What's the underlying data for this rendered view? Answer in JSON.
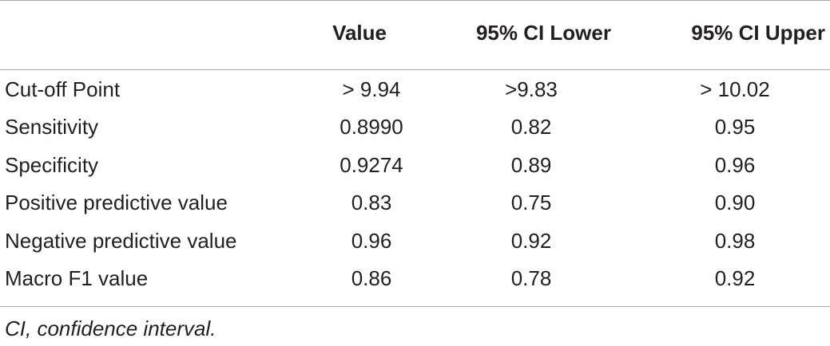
{
  "table": {
    "headers": [
      "",
      "Value",
      "95% CI Lower",
      "95% CI Upper"
    ],
    "rows": [
      [
        "Cut-off Point",
        "> 9.94",
        ">9.83",
        "> 10.02"
      ],
      [
        "Sensitivity",
        "0.8990",
        "0.82",
        "0.95"
      ],
      [
        "Specificity",
        "0.9274",
        "0.89",
        "0.96"
      ],
      [
        "Positive predictive value",
        "0.83",
        "0.75",
        "0.90"
      ],
      [
        "Negative predictive value",
        "0.96",
        "0.92",
        "0.98"
      ],
      [
        "Macro F1 value",
        "0.86",
        "0.78",
        "0.92"
      ]
    ]
  },
  "footnote": "CI, confidence interval."
}
